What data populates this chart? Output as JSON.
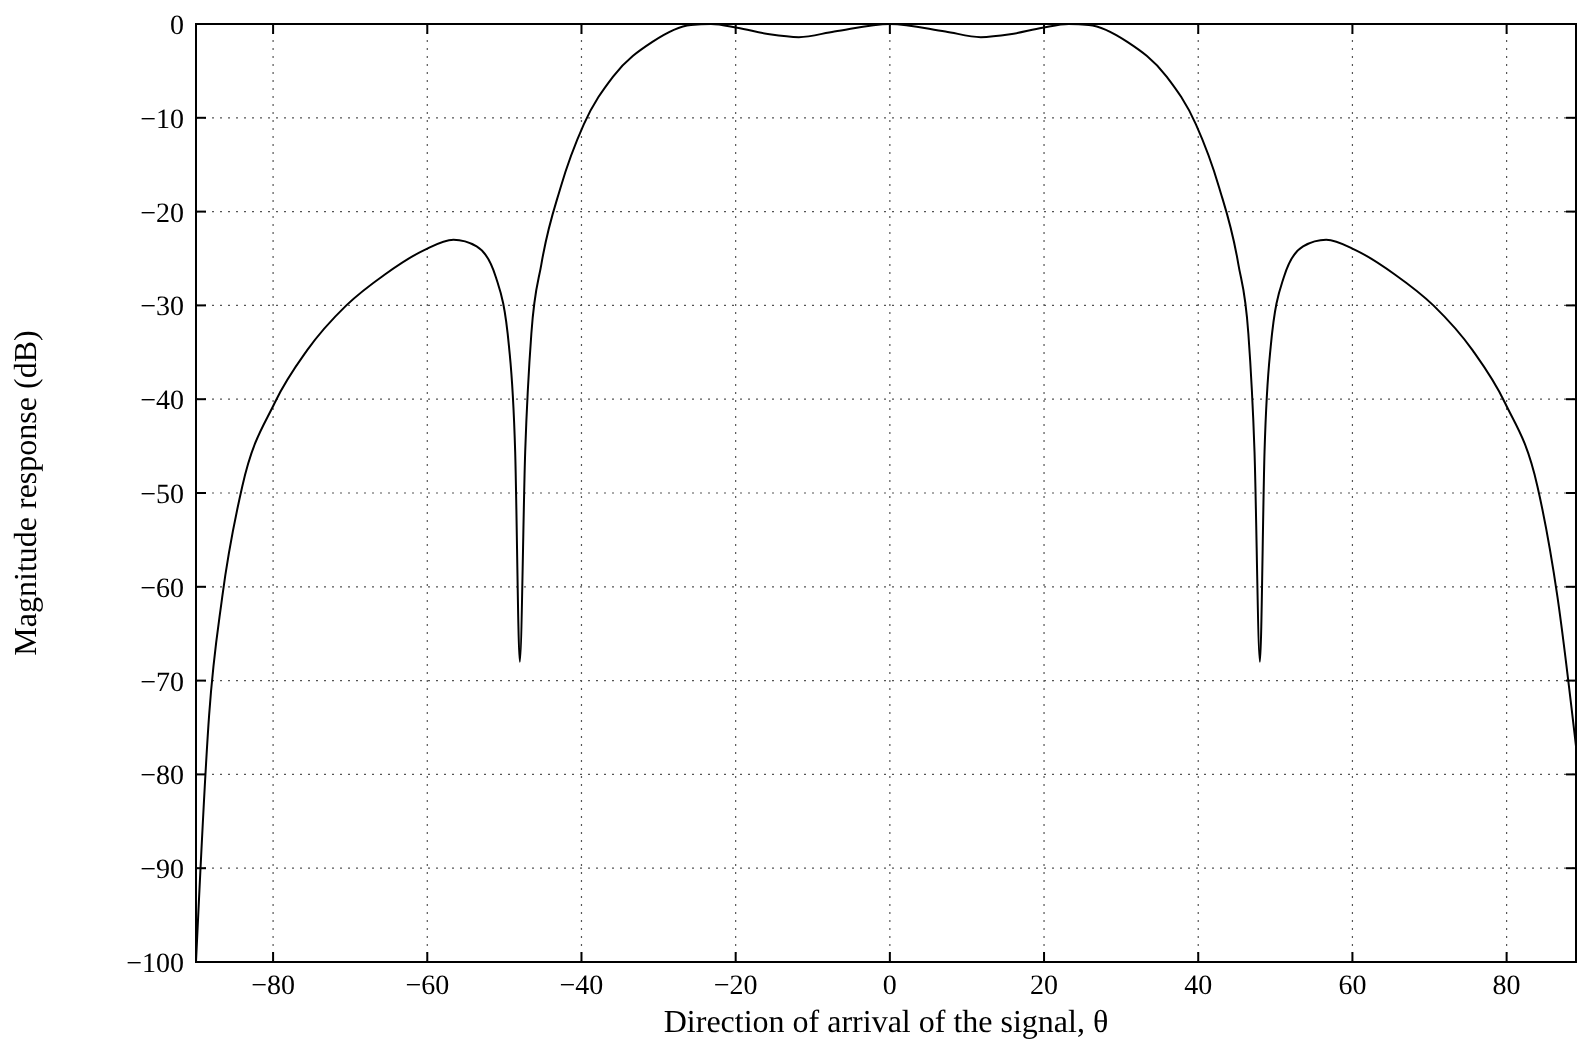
{
  "chart_data": {
    "type": "line",
    "xlabel": "Direction of arrival of the signal, θ",
    "ylabel": "Magnitude response (dB)",
    "xlim": [
      -90,
      89
    ],
    "ylim": [
      -100,
      0
    ],
    "xticks": [
      {
        "value": -80,
        "label": "−80"
      },
      {
        "value": -60,
        "label": "−60"
      },
      {
        "value": -40,
        "label": "−40"
      },
      {
        "value": -20,
        "label": "−20"
      },
      0,
      20,
      40,
      60,
      80
    ],
    "yticks": [
      {
        "value": -100,
        "label": "−100"
      },
      {
        "value": -90,
        "label": "−90"
      },
      {
        "value": -80,
        "label": "−80"
      },
      {
        "value": -70,
        "label": "−70"
      },
      {
        "value": -60,
        "label": "−60"
      },
      {
        "value": -50,
        "label": "−50"
      },
      {
        "value": -40,
        "label": "−40"
      },
      {
        "value": -30,
        "label": "−30"
      },
      {
        "value": -20,
        "label": "−20"
      },
      {
        "value": -10,
        "label": "−10"
      },
      0
    ],
    "grid": true,
    "line_style": "solid",
    "series": [
      {
        "color": "#000000",
        "x": [
          -90,
          -88.3,
          -86.6,
          -84,
          -79.8,
          -75.6,
          -70.5,
          -65.5,
          -60.4,
          -56.6,
          -53.6,
          -51.1,
          -49.4,
          -48.6,
          -48,
          -47.3,
          -46.5,
          -45.2,
          -42.7,
          -39.7,
          -35.9,
          -30.8,
          -25.8,
          -23.2,
          -19.8,
          -15.6,
          -11.8,
          -7.2,
          0,
          7.2,
          11.8,
          15.6,
          19.8,
          23.2,
          25.8,
          30.8,
          35.9,
          39.7,
          42.7,
          45.2,
          46.5,
          47.3,
          48,
          48.6,
          49.4,
          51.1,
          53.6,
          56.6,
          60.4,
          65.5,
          70.5,
          75.6,
          79.8,
          84,
          86.6,
          89
        ],
        "values": [
          -100,
          -73.7,
          -61.1,
          -49.3,
          -40.4,
          -34.8,
          -30,
          -26.7,
          -24.1,
          -23,
          -23.7,
          -27,
          -34.4,
          -45.6,
          -68,
          -45.6,
          -33,
          -25.6,
          -17.4,
          -10.7,
          -5.6,
          -1.9,
          -0.1,
          0,
          -0.4,
          -1.1,
          -1.4,
          -0.8,
          0,
          -0.8,
          -1.4,
          -1.1,
          -0.4,
          0,
          -0.1,
          -1.9,
          -5.6,
          -10.7,
          -17.4,
          -25.6,
          -33,
          -45.6,
          -68,
          -45.6,
          -34.4,
          -27,
          -23.7,
          -23,
          -24.1,
          -26.7,
          -30,
          -34.8,
          -40.4,
          -49.3,
          -61.1,
          -77
        ]
      }
    ]
  }
}
